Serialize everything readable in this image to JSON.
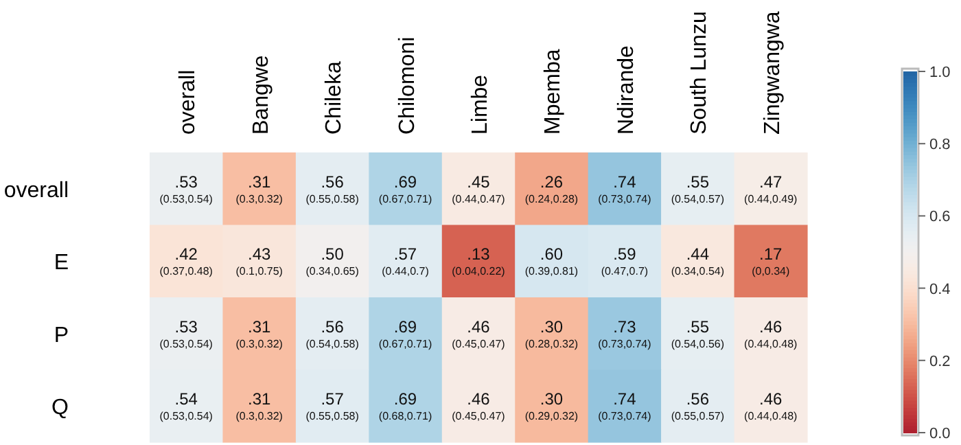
{
  "chart_data": {
    "type": "heatmap",
    "categories": [
      "overall",
      "Bangwe",
      "Chileka",
      "Chilomoni",
      "Limbe",
      "Mpemba",
      "Ndirande",
      "South Lunzu",
      "Zingwangwa"
    ],
    "y_categories": [
      "overall",
      "E",
      "P",
      "Q"
    ],
    "cells": [
      [
        0.53,
        0.31,
        0.56,
        0.69,
        0.45,
        0.26,
        0.74,
        0.55,
        0.47
      ],
      [
        0.42,
        0.43,
        0.5,
        0.57,
        0.13,
        0.6,
        0.59,
        0.44,
        0.17
      ],
      [
        0.53,
        0.31,
        0.56,
        0.69,
        0.46,
        0.3,
        0.73,
        0.55,
        0.46
      ],
      [
        0.54,
        0.31,
        0.57,
        0.69,
        0.46,
        0.3,
        0.74,
        0.56,
        0.46
      ]
    ],
    "cell_labels": [
      [
        ".53\n(0.53,0.54)",
        ".31\n(0.3,0.32)",
        ".56\n(0.55,0.58)",
        ".69\n(0.67,0.71)",
        ".45\n(0.44,0.47)",
        ".26\n(0.24,0.28)",
        ".74\n(0.73,0.74)",
        ".55\n(0.54,0.57)",
        ".47\n(0.44,0.49)"
      ],
      [
        ".42\n(0.37,0.48)",
        ".43\n(0.1,0.75)",
        ".50\n(0.34,0.65)",
        ".57\n(0.44,0.7)",
        ".13\n(0.04,0.22)",
        ".60\n(0.39,0.81)",
        ".59\n(0.47,0.7)",
        ".44\n(0.34,0.54)",
        ".17\n(0,0.34)"
      ],
      [
        ".53\n(0.53,0.54)",
        ".31\n(0.3,0.32)",
        ".56\n(0.54,0.58)",
        ".69\n(0.67,0.71)",
        ".46\n(0.45,0.47)",
        ".30\n(0.28,0.32)",
        ".73\n(0.73,0.74)",
        ".55\n(0.54,0.56)",
        ".46\n(0.44,0.48)"
      ],
      [
        ".54\n(0.53,0.54)",
        ".31\n(0.3,0.32)",
        ".57\n(0.55,0.58)",
        ".69\n(0.68,0.71)",
        ".46\n(0.45,0.47)",
        ".30\n(0.29,0.32)",
        ".74\n(0.73,0.74)",
        ".56\n(0.55,0.57)",
        ".46\n(0.44,0.48)"
      ]
    ],
    "clim": [
      0,
      1
    ],
    "cticks": [
      {
        "value": 0,
        "label": "0.0"
      },
      {
        "value": 0.2,
        "label": "0.2"
      },
      {
        "value": 0.4,
        "label": "0.4"
      },
      {
        "value": 0.6,
        "label": "0.6"
      },
      {
        "value": 0.8,
        "label": "0.8"
      },
      {
        "value": 1,
        "label": "1.0"
      }
    ]
  }
}
